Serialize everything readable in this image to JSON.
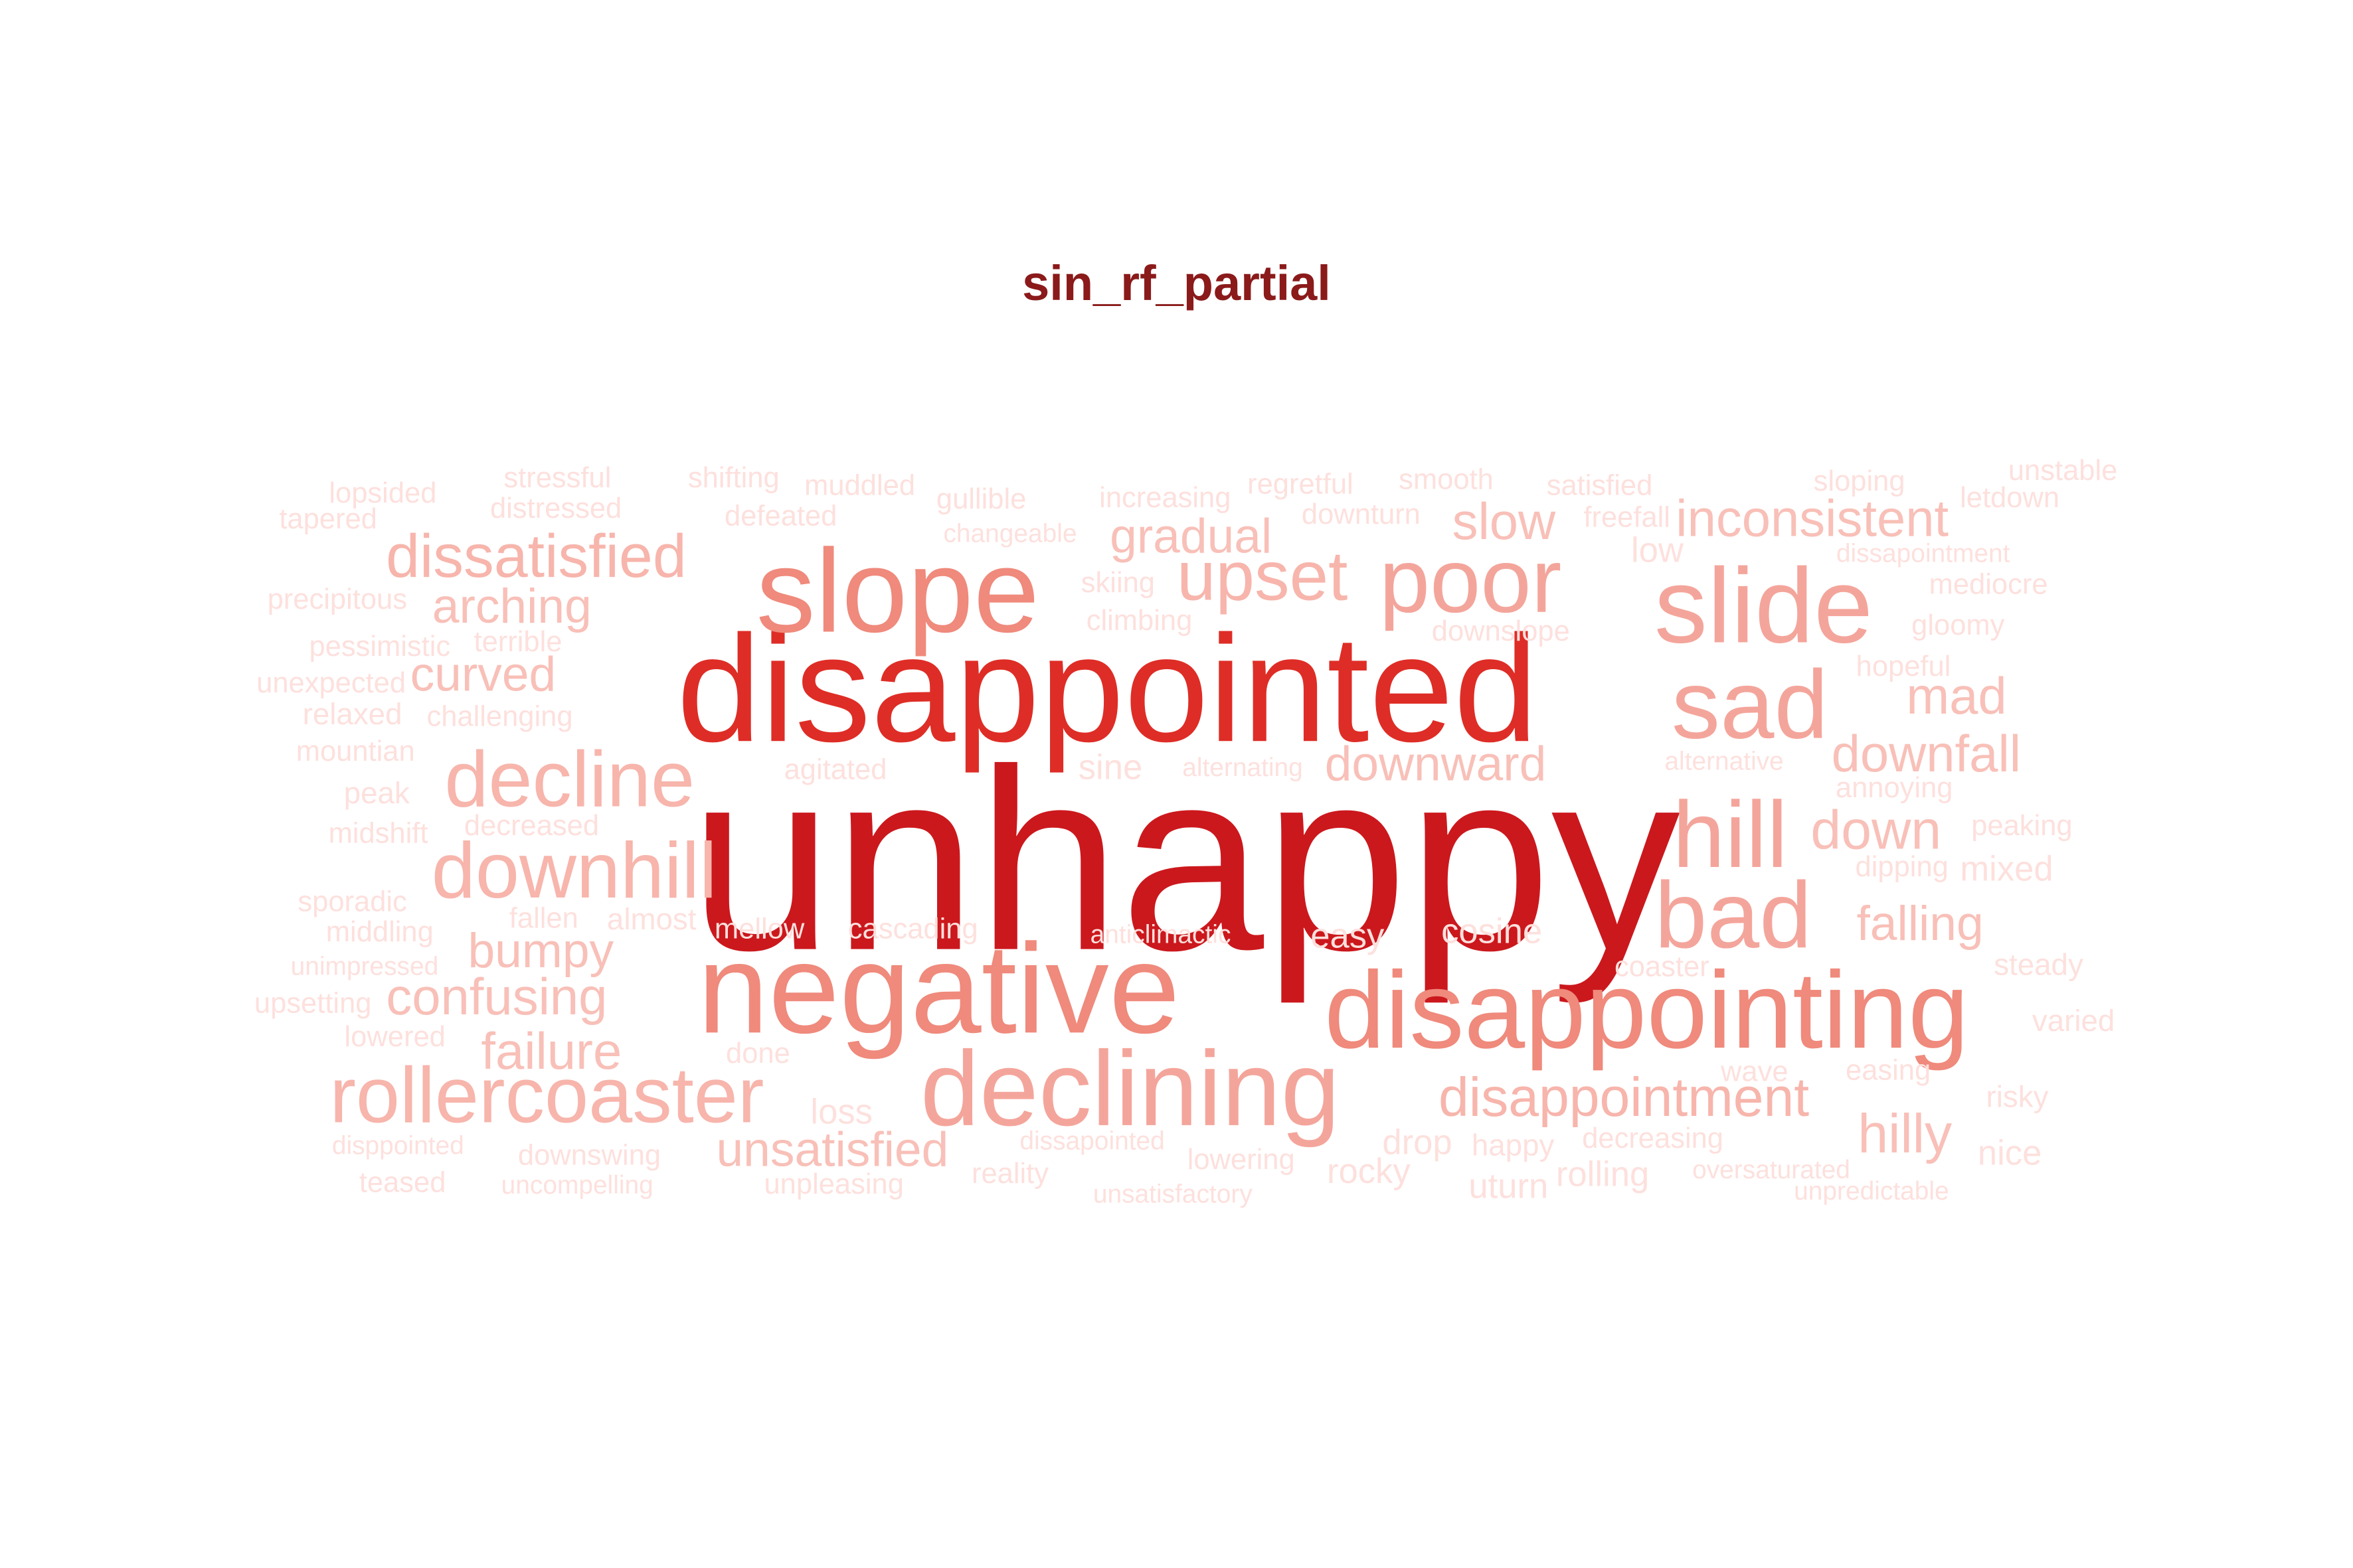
{
  "chart_data": {
    "type": "wordcloud",
    "title": "sin_rf_partial",
    "palette": [
      "#fde0dd",
      "#fcbba1",
      "#fc9272",
      "#fb6a4a",
      "#de2d26",
      "#cb181d"
    ],
    "words": [
      {
        "text": "unhappy",
        "weight": 100
      },
      {
        "text": "disappointed",
        "weight": 80
      },
      {
        "text": "negative",
        "weight": 62
      },
      {
        "text": "disappointing",
        "weight": 56
      },
      {
        "text": "slope",
        "weight": 55
      },
      {
        "text": "declining",
        "weight": 52
      },
      {
        "text": "slide",
        "weight": 52
      },
      {
        "text": "bad",
        "weight": 48
      },
      {
        "text": "hill",
        "weight": 48
      },
      {
        "text": "sad",
        "weight": 46
      },
      {
        "text": "poor",
        "weight": 45
      },
      {
        "text": "upset",
        "weight": 39
      },
      {
        "text": "rollercoaster",
        "weight": 38
      },
      {
        "text": "decline",
        "weight": 38
      },
      {
        "text": "downhill",
        "weight": 38
      },
      {
        "text": "dissatisfied",
        "weight": 31
      },
      {
        "text": "disappointment",
        "weight": 30
      },
      {
        "text": "inconsistent",
        "weight": 28
      },
      {
        "text": "slow",
        "weight": 28
      },
      {
        "text": "gradual",
        "weight": 27
      },
      {
        "text": "down",
        "weight": 29
      },
      {
        "text": "downfall",
        "weight": 28
      },
      {
        "text": "mad",
        "weight": 28
      },
      {
        "text": "falling",
        "weight": 27
      },
      {
        "text": "hilly",
        "weight": 29
      },
      {
        "text": "downward",
        "weight": 27
      },
      {
        "text": "arching",
        "weight": 27
      },
      {
        "text": "curved",
        "weight": 27
      },
      {
        "text": "bumpy",
        "weight": 27
      },
      {
        "text": "confusing",
        "weight": 26
      },
      {
        "text": "failure",
        "weight": 26
      },
      {
        "text": "unsatisfied",
        "weight": 25
      },
      {
        "text": "stressful",
        "weight": 15
      },
      {
        "text": "distressed",
        "weight": 15
      },
      {
        "text": "lopsided",
        "weight": 15
      },
      {
        "text": "tapered",
        "weight": 15
      },
      {
        "text": "shifting",
        "weight": 15
      },
      {
        "text": "defeated",
        "weight": 15
      },
      {
        "text": "muddled",
        "weight": 15
      },
      {
        "text": "gullible",
        "weight": 15
      },
      {
        "text": "changeable",
        "weight": 13
      },
      {
        "text": "increasing",
        "weight": 15
      },
      {
        "text": "regretful",
        "weight": 15
      },
      {
        "text": "smooth",
        "weight": 15
      },
      {
        "text": "downturn",
        "weight": 15
      },
      {
        "text": "satisfied",
        "weight": 15
      },
      {
        "text": "freefall",
        "weight": 15
      },
      {
        "text": "sloping",
        "weight": 15
      },
      {
        "text": "unstable",
        "weight": 15
      },
      {
        "text": "letdown",
        "weight": 15
      },
      {
        "text": "low",
        "weight": 17
      },
      {
        "text": "dissapointment",
        "weight": 13
      },
      {
        "text": "mediocre",
        "weight": 15
      },
      {
        "text": "precipitous",
        "weight": 15
      },
      {
        "text": "skiing",
        "weight": 15
      },
      {
        "text": "climbing",
        "weight": 15
      },
      {
        "text": "downslope",
        "weight": 15
      },
      {
        "text": "gloomy",
        "weight": 15
      },
      {
        "text": "pessimistic",
        "weight": 15
      },
      {
        "text": "terrible",
        "weight": 15
      },
      {
        "text": "unexpected",
        "weight": 15
      },
      {
        "text": "hopeful",
        "weight": 15
      },
      {
        "text": "relaxed",
        "weight": 16
      },
      {
        "text": "challenging",
        "weight": 15
      },
      {
        "text": "mountian",
        "weight": 15
      },
      {
        "text": "agitated",
        "weight": 15
      },
      {
        "text": "sine",
        "weight": 17
      },
      {
        "text": "alternating",
        "weight": 14
      },
      {
        "text": "alternative",
        "weight": 14
      },
      {
        "text": "annoying",
        "weight": 15
      },
      {
        "text": "peak",
        "weight": 16
      },
      {
        "text": "midshift",
        "weight": 15
      },
      {
        "text": "decreased",
        "weight": 15
      },
      {
        "text": "peaking",
        "weight": 15
      },
      {
        "text": "dipping",
        "weight": 15
      },
      {
        "text": "mixed",
        "weight": 17
      },
      {
        "text": "sporadic",
        "weight": 15
      },
      {
        "text": "middling",
        "weight": 15
      },
      {
        "text": "fallen",
        "weight": 15
      },
      {
        "text": "almost",
        "weight": 16
      },
      {
        "text": "mellow",
        "weight": 15
      },
      {
        "text": "cascading",
        "weight": 15
      },
      {
        "text": "anticlimactic",
        "weight": 14
      },
      {
        "text": "easy",
        "weight": 17
      },
      {
        "text": "cosine",
        "weight": 17
      },
      {
        "text": "coaster",
        "weight": 15
      },
      {
        "text": "steady",
        "weight": 16
      },
      {
        "text": "unimpressed",
        "weight": 14
      },
      {
        "text": "upsetting",
        "weight": 15
      },
      {
        "text": "varied",
        "weight": 16
      },
      {
        "text": "lowered",
        "weight": 15
      },
      {
        "text": "done",
        "weight": 15
      },
      {
        "text": "wave",
        "weight": 15
      },
      {
        "text": "easing",
        "weight": 15
      },
      {
        "text": "risky",
        "weight": 16
      },
      {
        "text": "loss",
        "weight": 17
      },
      {
        "text": "disppointed",
        "weight": 14
      },
      {
        "text": "downswing",
        "weight": 15
      },
      {
        "text": "dissapointed",
        "weight": 14
      },
      {
        "text": "drop",
        "weight": 17
      },
      {
        "text": "happy",
        "weight": 16
      },
      {
        "text": "decreasing",
        "weight": 15
      },
      {
        "text": "lowering",
        "weight": 15
      },
      {
        "text": "nice",
        "weight": 17
      },
      {
        "text": "teased",
        "weight": 15
      },
      {
        "text": "uncompelling",
        "weight": 14
      },
      {
        "text": "unpleasing",
        "weight": 15
      },
      {
        "text": "reality",
        "weight": 15
      },
      {
        "text": "unsatisfactory",
        "weight": 14
      },
      {
        "text": "rocky",
        "weight": 17
      },
      {
        "text": "uturn",
        "weight": 17
      },
      {
        "text": "rolling",
        "weight": 17
      },
      {
        "text": "oversaturated",
        "weight": 14
      },
      {
        "text": "unpredictable",
        "weight": 14
      }
    ]
  }
}
